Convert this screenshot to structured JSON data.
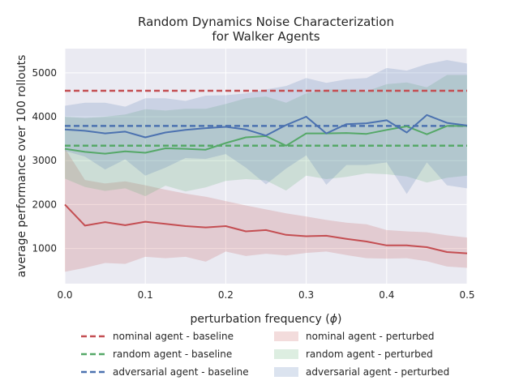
{
  "chart_data": {
    "type": "line",
    "title_line1": "Random Dynamics Noise Characterization",
    "title_line2": "for Walker Agents",
    "xlabel": "perturbation frequency (",
    "xlabel_phi": "ϕ",
    "xlabel_close": ")",
    "ylabel": "average performance over 100 rollouts",
    "xlim": [
      0.0,
      0.5
    ],
    "ylim": [
      200,
      5550
    ],
    "xticks": [
      0.0,
      0.1,
      0.2,
      0.3,
      0.4,
      0.5
    ],
    "xtick_labels": [
      "0.0",
      "0.1",
      "0.2",
      "0.3",
      "0.4",
      "0.5"
    ],
    "yticks": [
      1000,
      2000,
      3000,
      4000,
      5000
    ],
    "ytick_labels": [
      "1000",
      "2000",
      "3000",
      "4000",
      "5000"
    ],
    "grid": true,
    "legend_position": "bottom",
    "x": [
      0.0,
      0.025,
      0.05,
      0.075,
      0.1,
      0.125,
      0.15,
      0.175,
      0.2,
      0.225,
      0.25,
      0.275,
      0.3,
      0.325,
      0.35,
      0.375,
      0.4,
      0.425,
      0.45,
      0.475,
      0.5
    ],
    "series": [
      {
        "name": "nominal agent - perturbed",
        "color": "#c44e52",
        "band_alpha": 0.2,
        "mean": [
          2000,
          1520,
          1600,
          1530,
          1610,
          1560,
          1510,
          1480,
          1510,
          1390,
          1420,
          1310,
          1280,
          1290,
          1220,
          1160,
          1070,
          1070,
          1030,
          920,
          890
        ],
        "lower": [
          470,
          560,
          670,
          650,
          810,
          780,
          810,
          700,
          930,
          830,
          880,
          840,
          900,
          930,
          850,
          780,
          770,
          780,
          710,
          590,
          560
        ],
        "upper": [
          3280,
          2560,
          2480,
          2530,
          2440,
          2340,
          2250,
          2180,
          2080,
          1980,
          1890,
          1800,
          1730,
          1650,
          1590,
          1550,
          1420,
          1390,
          1370,
          1300,
          1250
        ]
      },
      {
        "name": "random agent - perturbed",
        "color": "#55a868",
        "band_alpha": 0.2,
        "mean": [
          3270,
          3200,
          3160,
          3210,
          3180,
          3280,
          3270,
          3250,
          3400,
          3530,
          3560,
          3340,
          3620,
          3620,
          3630,
          3610,
          3700,
          3780,
          3600,
          3790,
          3790
        ],
        "lower": [
          2590,
          2400,
          2310,
          2370,
          2190,
          2430,
          2300,
          2390,
          2540,
          2580,
          2550,
          2320,
          2660,
          2580,
          2630,
          2710,
          2690,
          2640,
          2500,
          2610,
          2660
        ],
        "upper": [
          4000,
          3970,
          4000,
          4050,
          4170,
          4140,
          4180,
          4180,
          4290,
          4420,
          4460,
          4320,
          4530,
          4620,
          4620,
          4580,
          4740,
          4780,
          4670,
          4950,
          4950
        ]
      },
      {
        "name": "adversarial agent - perturbed",
        "color": "#4c72b0",
        "band_alpha": 0.2,
        "mean": [
          3710,
          3680,
          3620,
          3660,
          3530,
          3640,
          3700,
          3740,
          3770,
          3710,
          3570,
          3810,
          4000,
          3620,
          3830,
          3850,
          3920,
          3640,
          4040,
          3860,
          3800
        ],
        "lower": [
          3220,
          3090,
          2800,
          3030,
          2660,
          2840,
          3060,
          3040,
          3150,
          2840,
          2460,
          2820,
          3120,
          2450,
          2900,
          2900,
          2960,
          2240,
          2960,
          2440,
          2370
        ],
        "upper": [
          4250,
          4320,
          4320,
          4230,
          4420,
          4420,
          4360,
          4480,
          4490,
          4530,
          4620,
          4700,
          4880,
          4770,
          4850,
          4880,
          5110,
          5050,
          5200,
          5290,
          5210
        ]
      }
    ],
    "baselines": [
      {
        "name": "nominal agent - baseline",
        "color": "#c44e52",
        "value": 4590
      },
      {
        "name": "random agent - baseline",
        "color": "#55a868",
        "value": 3340
      },
      {
        "name": "adversarial agent - baseline",
        "color": "#4c72b0",
        "value": 3790
      }
    ]
  }
}
